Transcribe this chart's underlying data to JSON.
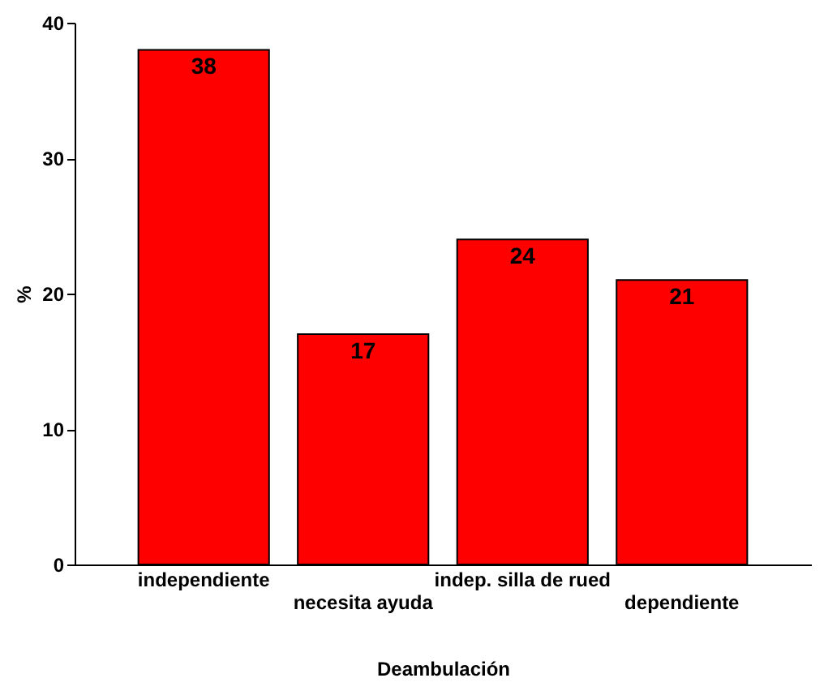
{
  "chart_data": {
    "type": "bar",
    "xlabel": "Deambulación",
    "ylabel": "%",
    "categories": [
      "independiente",
      "necesita ayuda",
      "indep. silla de rued",
      "dependiente"
    ],
    "values": [
      38,
      17,
      24,
      21
    ],
    "color": "#ff0000",
    "data_labels": true,
    "ylim": [
      0,
      40
    ],
    "yticks": [
      0,
      10,
      20,
      30,
      40
    ],
    "grid": false
  }
}
